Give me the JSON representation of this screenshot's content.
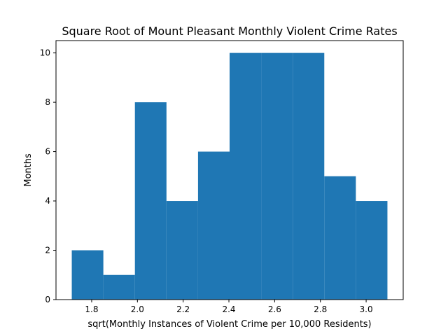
{
  "chart_data": {
    "type": "histogram",
    "title": "Square Root of Mount Pleasant Monthly Violent Crime Rates",
    "xlabel": "sqrt(Monthly Instances of Violent Crime per 10,000 Residents)",
    "ylabel": "Months",
    "bin_edges": [
      1.713,
      1.851,
      1.989,
      2.127,
      2.265,
      2.403,
      2.541,
      2.679,
      2.817,
      2.955,
      3.093
    ],
    "counts": [
      2,
      1,
      8,
      4,
      6,
      10,
      10,
      10,
      5,
      4
    ],
    "xlim": [
      1.644,
      3.162
    ],
    "ylim": [
      0,
      10.5
    ],
    "xticks": [
      1.8,
      2.0,
      2.2,
      2.4,
      2.6,
      2.8,
      3.0
    ],
    "xtick_labels": [
      "1.8",
      "2.0",
      "2.2",
      "2.4",
      "2.6",
      "2.8",
      "3.0"
    ],
    "yticks": [
      0,
      2,
      4,
      6,
      8,
      10
    ],
    "ytick_labels": [
      "0",
      "2",
      "4",
      "6",
      "8",
      "10"
    ],
    "bar_color": "#1f77b4",
    "grid": false,
    "legend": "none"
  }
}
